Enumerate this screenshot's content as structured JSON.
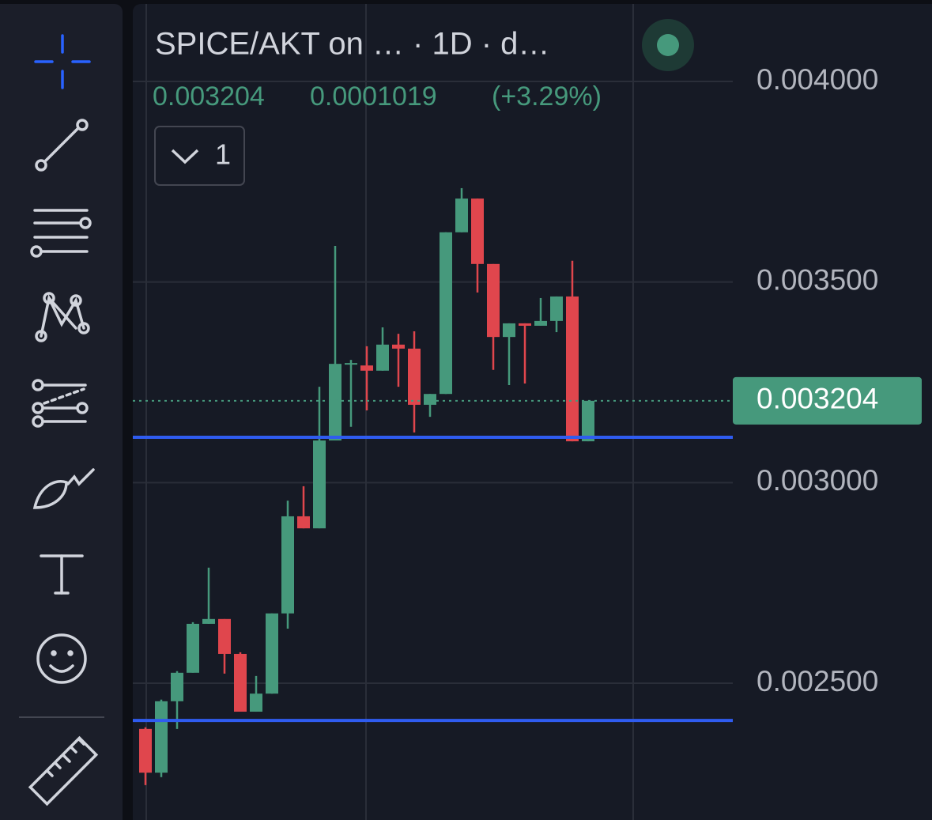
{
  "chart_data": {
    "type": "candlestick",
    "title": "SPICE/AKT on …  · 1D · d…",
    "change": 0.0001019,
    "change_percent": "(+3.29%)",
    "indicator_count": "1",
    "categories": [
      null,
      null,
      null,
      null,
      null,
      null,
      null,
      null,
      null,
      null,
      null,
      null,
      null,
      null,
      null,
      null,
      null,
      null,
      null,
      null,
      null,
      null,
      null,
      null,
      null,
      null,
      null,
      null,
      null
    ],
    "open": [
      0.002386,
      0.002277,
      0.002455,
      0.002526,
      0.002648,
      0.00266,
      0.002573,
      0.002429,
      0.002474,
      0.002674,
      0.002916,
      0.002886,
      0.003105,
      0.003296,
      0.003292,
      0.003279,
      0.003344,
      0.003334,
      0.003194,
      0.003221,
      0.003624,
      0.003708,
      0.003545,
      0.003363,
      0.003397,
      0.003391,
      0.003403,
      0.003464,
      0.003103
    ],
    "high": [
      0.00239,
      0.002459,
      0.00253,
      0.002652,
      0.002788,
      0.00266,
      0.002577,
      0.002518,
      0.002674,
      0.002955,
      0.002991,
      0.003239,
      0.00359,
      0.003306,
      0.00334,
      0.003387,
      0.003371,
      0.003377,
      0.003221,
      0.003624,
      0.003734,
      0.003708,
      0.003545,
      0.003397,
      0.003397,
      0.00346,
      0.003464,
      0.003553,
      0.003204
    ],
    "low": [
      0.002246,
      0.002266,
      0.002386,
      0.002526,
      0.002648,
      0.002524,
      0.002429,
      0.002429,
      0.002474,
      0.002636,
      0.002886,
      0.002886,
      0.003105,
      0.003139,
      0.00318,
      0.003279,
      0.003239,
      0.003125,
      0.003164,
      0.003221,
      0.003624,
      0.003474,
      0.003281,
      0.003243,
      0.003247,
      0.003391,
      0.003375,
      0.003103,
      0.003103
    ],
    "close": [
      0.002277,
      0.002455,
      0.002526,
      0.002648,
      0.00266,
      0.002573,
      0.002429,
      0.002474,
      0.002674,
      0.002916,
      0.002886,
      0.003105,
      0.003296,
      0.003298,
      0.003279,
      0.003344,
      0.003334,
      0.003194,
      0.003221,
      0.003624,
      0.003708,
      0.003545,
      0.003363,
      0.003397,
      0.003391,
      0.003403,
      0.003464,
      0.003103,
      0.003204
    ],
    "up_color": "#46997c",
    "down_color": "#e0464d",
    "ylim": [
      0.002159,
      0.004203
    ],
    "yticks": [
      {
        "value": 0.0025,
        "label": "0.002500"
      },
      {
        "value": 0.003,
        "label": "0.003000"
      },
      {
        "value": 0.0035,
        "label": "0.003500"
      },
      {
        "value": 0.004,
        "label": "0.004000"
      }
    ],
    "grid": true,
    "hlines": [
      0.003113,
      0.002407
    ],
    "hline_color": "#2f5cf0"
  }
}
